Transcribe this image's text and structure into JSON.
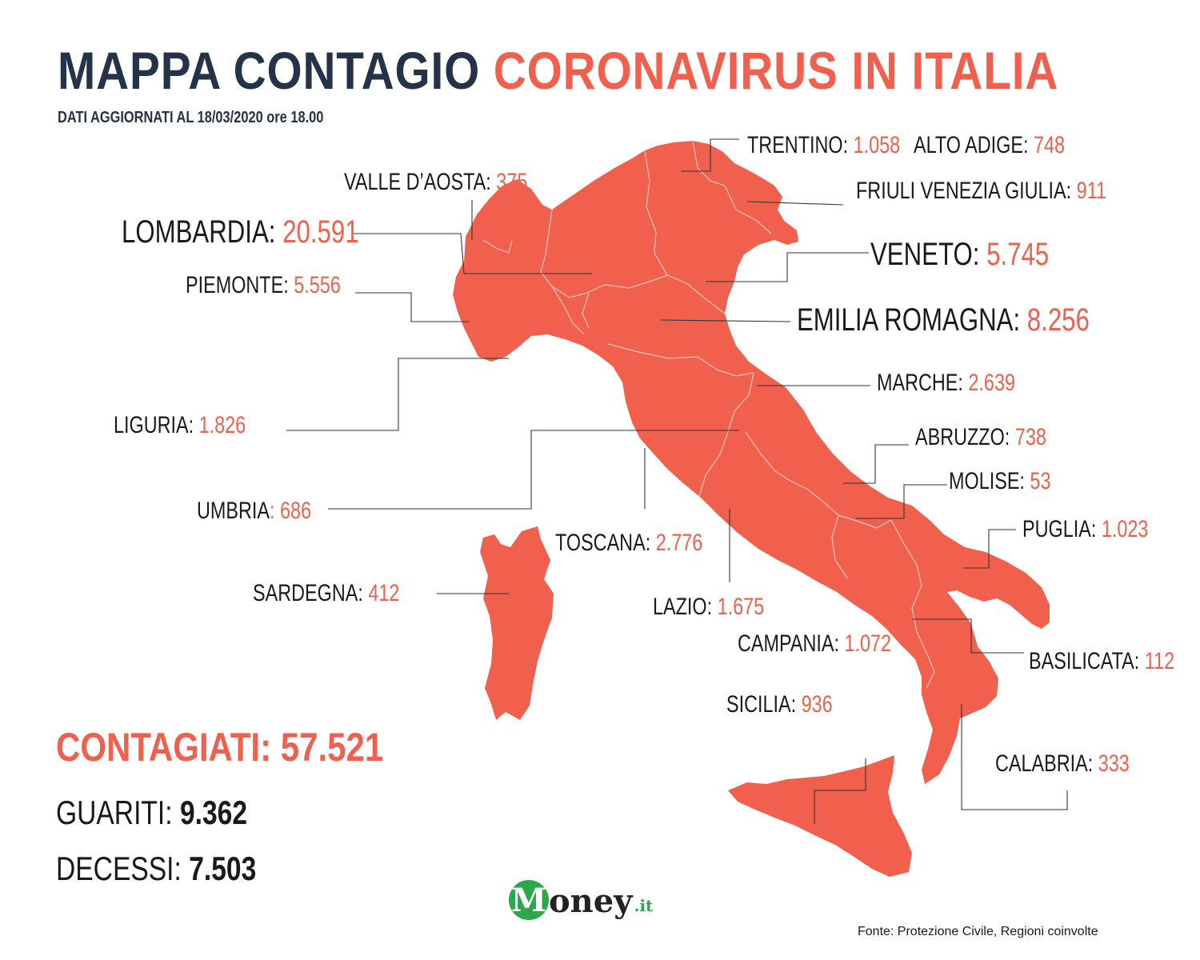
{
  "title": {
    "part1": "MAPPA CONTAGIO",
    "part2": "CORONAVIRUS IN ITALIA"
  },
  "subtitle": "DATI AGGIORNATI AL  18/03/2020 ore 18.00",
  "regions": {
    "trentino": {
      "name": "TRENTINO",
      "value": "1.058"
    },
    "alto_adige": {
      "name": "ALTO ADIGE",
      "value": "748"
    },
    "valle_aosta": {
      "name": "VALLE D’AOSTA",
      "value": "375"
    },
    "friuli": {
      "name": "FRIULI VENEZIA GIULIA",
      "value": "911"
    },
    "lombardia": {
      "name": "LOMBARDIA",
      "value": "20.591"
    },
    "veneto": {
      "name": "VENETO",
      "value": "5.745"
    },
    "piemonte": {
      "name": "PIEMONTE",
      "value": "5.556"
    },
    "emilia": {
      "name": "EMILIA ROMAGNA",
      "value": "8.256"
    },
    "marche": {
      "name": "MARCHE",
      "value": "2.639"
    },
    "liguria": {
      "name": "LIGURIA",
      "value": "1.826"
    },
    "abruzzo": {
      "name": "ABRUZZO",
      "value": "738"
    },
    "molise": {
      "name": "MOLISE",
      "value": "53"
    },
    "umbria": {
      "name": "UMBRIA",
      "value": "686"
    },
    "puglia": {
      "name": "PUGLIA",
      "value": "1.023"
    },
    "toscana": {
      "name": "TOSCANA",
      "value": "2.776"
    },
    "sardegna": {
      "name": "SARDEGNA",
      "value": "412"
    },
    "lazio": {
      "name": "LAZIO",
      "value": "1.675"
    },
    "campania": {
      "name": "CAMPANIA",
      "value": "1.072"
    },
    "basilicata": {
      "name": "BASILICATA",
      "value": "112"
    },
    "sicilia": {
      "name": "SICILIA",
      "value": "936"
    },
    "calabria": {
      "name": "CALABRIA",
      "value": "333"
    }
  },
  "totals": {
    "contagiati_label": "CONTAGIATI:",
    "contagiati": "57.521",
    "guariti_label": "GUARITI",
    "guariti": "9.362",
    "decessi_label": "DECESSI",
    "decessi": "7.503"
  },
  "logo": {
    "initial": "M",
    "text": "oney",
    "suffix": ".it"
  },
  "source": "Fonte: Protezione Civile, Regioni coinvolte",
  "colors": {
    "accent": "#f0604d",
    "dark": "#243348",
    "map_fill": "#f0604d",
    "logo_green": "#2aa84a"
  }
}
